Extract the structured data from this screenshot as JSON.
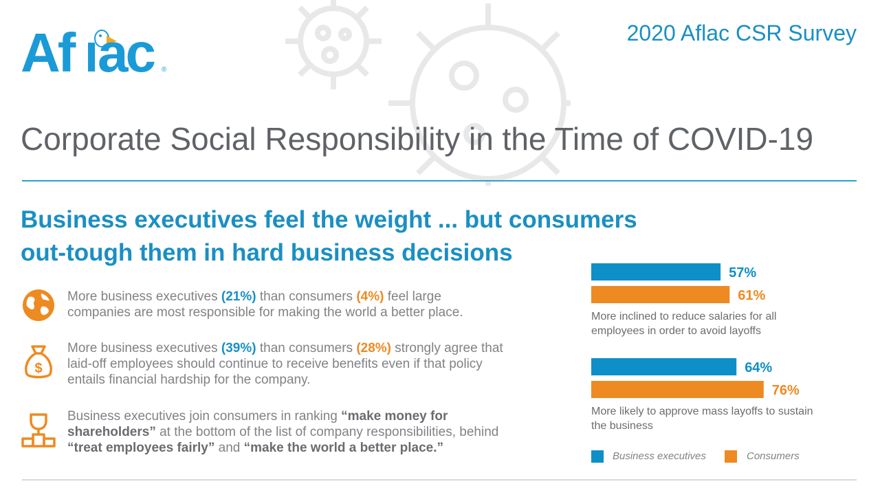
{
  "header": {
    "logo_text": "Aflac",
    "survey_title": "2020 Aflac CSR Survey",
    "main_title": "Corporate Social Responsibility in the Time of COVID-19"
  },
  "subtitle": {
    "line1": "Business executives feel the weight ... but consumers",
    "line2": "out-tough them in hard business decisions"
  },
  "findings": [
    {
      "icon": "globe-icon",
      "parts": [
        {
          "t": "More business executives ",
          "s": ""
        },
        {
          "t": "(21%)",
          "s": "blue"
        },
        {
          "t": " than consumers ",
          "s": ""
        },
        {
          "t": "(4%)",
          "s": "orange"
        },
        {
          "t": " feel large companies are most responsible for making the world a better place.",
          "s": ""
        }
      ]
    },
    {
      "icon": "money-bag-icon",
      "parts": [
        {
          "t": "More business executives ",
          "s": ""
        },
        {
          "t": "(39%)",
          "s": "blue"
        },
        {
          "t": " than consumers ",
          "s": ""
        },
        {
          "t": "(28%)",
          "s": "orange"
        },
        {
          "t": " strongly agree that laid-off employees should continue to receive benefits even if that policy entails financial hardship for the company.",
          "s": ""
        }
      ]
    },
    {
      "icon": "trophy-icon",
      "parts": [
        {
          "t": "Business executives join consumers in ranking ",
          "s": ""
        },
        {
          "t": "“make money for shareholders”",
          "s": "dark"
        },
        {
          "t": " at the bottom of the list of company responsibilities, behind ",
          "s": ""
        },
        {
          "t": "“treat employees fairly”",
          "s": "dark"
        },
        {
          "t": " and ",
          "s": ""
        },
        {
          "t": "“make the world a better place.”",
          "s": "dark"
        }
      ]
    }
  ],
  "colors": {
    "business": "#0e8fc7",
    "consumers": "#ee8a22",
    "title_blue": "#1a8fc4",
    "text_gray": "#808285"
  },
  "chart_data": {
    "type": "bar",
    "orientation": "horizontal",
    "categories": [
      "More inclined to reduce salaries for all employees in order to avoid layoffs",
      "More likely to approve mass layoffs to sustain the business"
    ],
    "series": [
      {
        "name": "Business executives",
        "values": [
          57,
          64
        ],
        "labels": [
          "57%",
          "64%"
        ]
      },
      {
        "name": "Consumers",
        "values": [
          61,
          76
        ],
        "labels": [
          "61%",
          "76%"
        ]
      }
    ],
    "xlim": [
      0,
      100
    ],
    "grid": false,
    "legend": "bottom"
  }
}
